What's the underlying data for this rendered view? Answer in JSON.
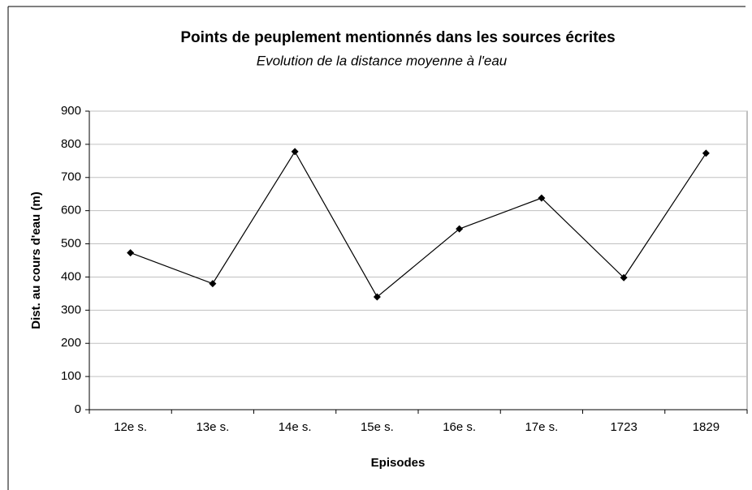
{
  "chart_data": {
    "type": "line",
    "title": "Points de peuplement mentionnés dans les sources écrites",
    "subtitle": "Evolution de la distance moyenne à l'eau",
    "x_label": "Episodes",
    "y_label": "Dist. au cours d'eau (m)",
    "categories": [
      "12e s.",
      "13e s.",
      "14e s.",
      "15e s.",
      "16e s.",
      "17e s.",
      "1723",
      "1829"
    ],
    "series": [
      {
        "name": "Dist. au cours d'eau (m)",
        "color": "#000000",
        "values": [
          473,
          380,
          778,
          340,
          545,
          638,
          398,
          773
        ]
      }
    ],
    "ylim": [
      0,
      900
    ],
    "yticks": [
      0,
      100,
      200,
      300,
      400,
      500,
      600,
      700,
      800,
      900
    ],
    "grid": true
  }
}
